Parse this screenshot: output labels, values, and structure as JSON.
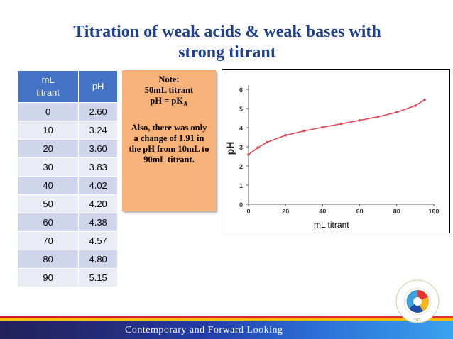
{
  "slide": {
    "title_line1": "Titration of weak acids & weak bases with",
    "title_line2": "strong titrant",
    "footer": "Contemporary and Forward Looking",
    "page_number": "25"
  },
  "table": {
    "header_col1_line1": "mL",
    "header_col1_line2": "titrant",
    "header_col2": "pH",
    "rows": [
      {
        "ml": "0",
        "ph": "2.60"
      },
      {
        "ml": "10",
        "ph": "3.24"
      },
      {
        "ml": "20",
        "ph": "3.60"
      },
      {
        "ml": "30",
        "ph": "3.83"
      },
      {
        "ml": "40",
        "ph": "4.02"
      },
      {
        "ml": "50",
        "ph": "4.20"
      },
      {
        "ml": "60",
        "ph": "4.38"
      },
      {
        "ml": "70",
        "ph": "4.57"
      },
      {
        "ml": "80",
        "ph": "4.80"
      },
      {
        "ml": "90",
        "ph": "5.15"
      }
    ]
  },
  "note": {
    "line1": "Note:",
    "line2": "50mL titrant",
    "line3_main": "pH = pK",
    "line3_sub": "A",
    "line4": "Also, there was only",
    "line5": "a change of 1.91 in",
    "line6": "the pH from 10mL to",
    "line7": "90mL titrant."
  },
  "chart_data": {
    "type": "line",
    "xlabel": "mL titrant",
    "ylabel": "pH",
    "xlim": [
      0,
      100
    ],
    "ylim": [
      0,
      6
    ],
    "x_ticks": [
      "0",
      "20",
      "40",
      "60",
      "80",
      "100"
    ],
    "y_ticks": [
      "0",
      "1",
      "2",
      "3",
      "4",
      "5",
      "6"
    ],
    "series": [
      {
        "color": "#e04a5a",
        "x": [
          0,
          5,
          10,
          20,
          30,
          40,
          50,
          60,
          70,
          80,
          90,
          95
        ],
        "y": [
          2.6,
          2.95,
          3.24,
          3.6,
          3.83,
          4.02,
          4.2,
          4.38,
          4.57,
          4.8,
          5.15,
          5.45
        ]
      }
    ]
  },
  "colors": {
    "title": "#1f3f8f",
    "table_header": "#4472c4",
    "note_bg": "#f7b27a",
    "line": "#e04a5a"
  }
}
